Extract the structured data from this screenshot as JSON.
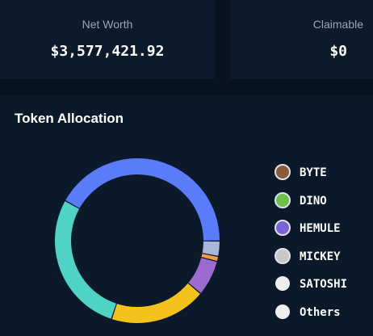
{
  "cards": [
    {
      "label": "Net Worth",
      "value": "$3,577,421.92"
    },
    {
      "label": "Claimable",
      "value": "$0"
    }
  ],
  "chart_data": {
    "type": "pie",
    "title": "Token Allocation",
    "categories": [
      "BYTE",
      "DINO",
      "HEMULE",
      "MICKEY",
      "SATOSHI",
      "Others"
    ],
    "values": [
      42,
      3,
      1,
      7,
      19,
      28
    ],
    "colors": [
      "#5b7cfa",
      "#a9b8d8",
      "#f59a4a",
      "#9b6bd0",
      "#f5c21b",
      "#4fd3c4"
    ]
  }
}
